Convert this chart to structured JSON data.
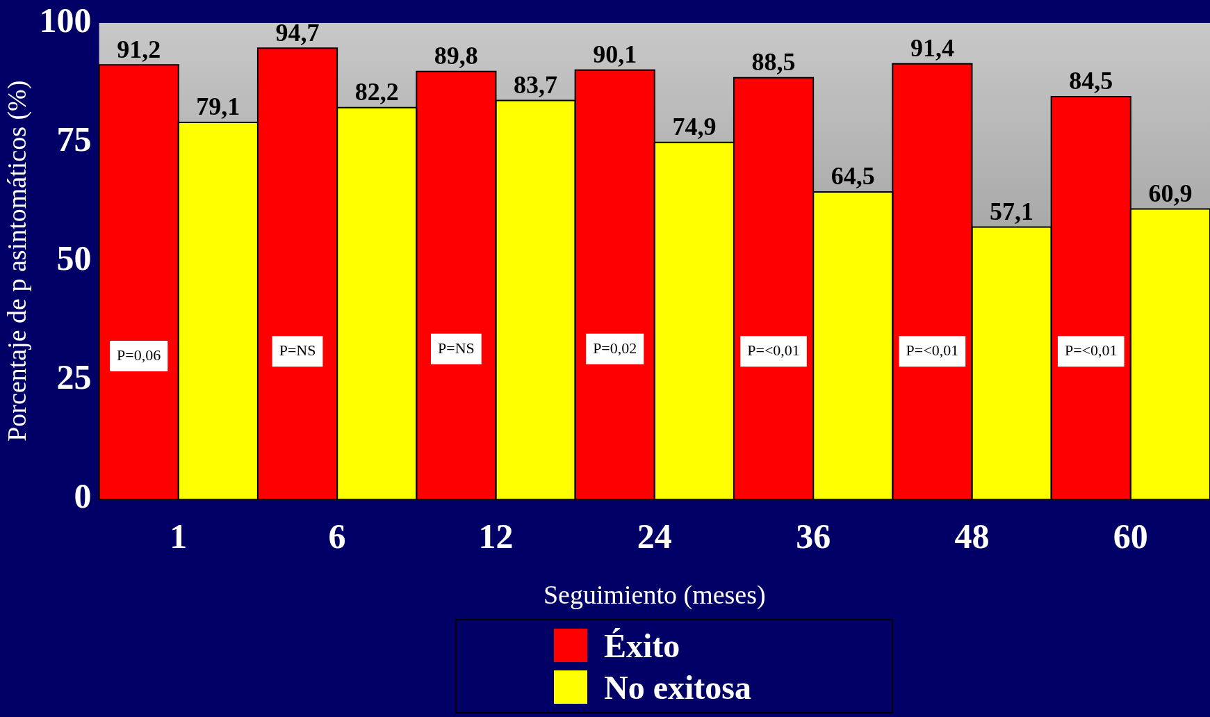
{
  "chart_data": {
    "type": "bar",
    "xlabel": "Seguimiento (meses)",
    "ylabel": "Porcentaje de p asintomáticos (%)",
    "categories": [
      "1",
      "6",
      "12",
      "24",
      "36",
      "48",
      "60"
    ],
    "series": [
      {
        "name": "Éxito",
        "color": "#ff0000",
        "values": [
          91.2,
          94.7,
          89.8,
          90.1,
          88.5,
          91.4,
          84.5
        ]
      },
      {
        "name": "No exitosa",
        "color": "#ffff00",
        "values": [
          79.1,
          82.2,
          83.7,
          74.9,
          64.5,
          57.1,
          60.9
        ]
      }
    ],
    "ylim": [
      0,
      100
    ],
    "yticks": [
      0,
      25,
      50,
      75,
      100
    ],
    "grid": false,
    "legend": "bottom",
    "value_labels": [
      [
        "91,2",
        "94,7",
        "89,8",
        "90,1",
        "88,5",
        "91,4",
        "84,5"
      ],
      [
        "79,1",
        "82,2",
        "83,7",
        "74,9",
        "64,5",
        "57,1",
        "60,9"
      ]
    ],
    "annotations": [
      {
        "text": "P=0,06",
        "x": "1",
        "y": 30
      },
      {
        "text": "P=NS",
        "x": "6",
        "y": 31
      },
      {
        "text": "P=NS",
        "x": "12",
        "y": 31.5
      },
      {
        "text": "P=0,02",
        "x": "24",
        "y": 31.5
      },
      {
        "text": "P=<0,01",
        "x": "36",
        "y": 31
      },
      {
        "text": "P=<0,01",
        "x": "48",
        "y": 31
      },
      {
        "text": "P=<0,01",
        "x": "60",
        "y": 31
      }
    ]
  }
}
